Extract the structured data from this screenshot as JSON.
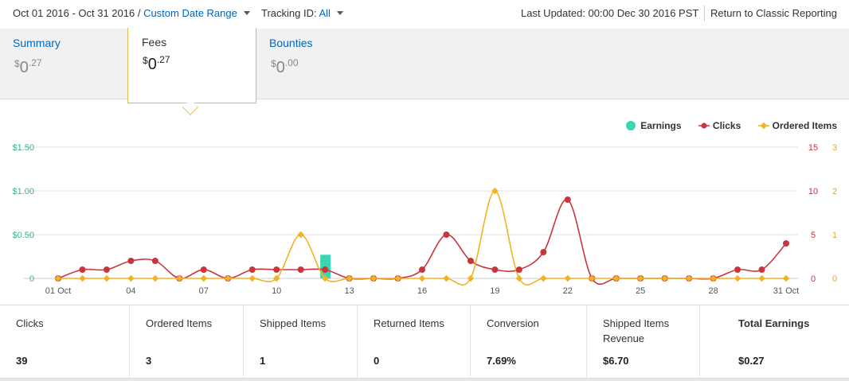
{
  "header": {
    "date_range": "Oct 01 2016 - Oct 31 2016 /",
    "custom_range_label": "Custom Date Range",
    "tracking_label": "Tracking ID:",
    "tracking_value": "All",
    "last_updated": "Last Updated: 00:00 Dec 30 2016 PST",
    "classic_link": "Return to Classic Reporting"
  },
  "tabs": [
    {
      "title": "Summary",
      "currency": "$",
      "whole": "0",
      "cents": ".27"
    },
    {
      "title": "Fees",
      "currency": "$",
      "whole": "0",
      "cents": ".27"
    },
    {
      "title": "Bounties",
      "currency": "$",
      "whole": "0",
      "cents": ".00"
    }
  ],
  "legend": {
    "earnings": "Earnings",
    "clicks": "Clicks",
    "ordered": "Ordered Items"
  },
  "colors": {
    "earnings": "#3cd5b1",
    "clicks": "#c8363c",
    "ordered": "#f0b323",
    "link": "#0066c0",
    "left_axis": "#3cb08f",
    "right_axis_clicks": "#c8363c",
    "right_axis_ordered": "#e3a33b"
  },
  "chart_data": {
    "type": "line",
    "days": [
      1,
      2,
      3,
      4,
      5,
      6,
      7,
      8,
      9,
      10,
      11,
      12,
      13,
      14,
      15,
      16,
      17,
      18,
      19,
      20,
      21,
      22,
      23,
      24,
      25,
      26,
      27,
      28,
      29,
      30,
      31
    ],
    "x_tick_labels": [
      {
        "day": 1,
        "label": "01 Oct"
      },
      {
        "day": 4,
        "label": "04"
      },
      {
        "day": 7,
        "label": "07"
      },
      {
        "day": 10,
        "label": "10"
      },
      {
        "day": 13,
        "label": "13"
      },
      {
        "day": 16,
        "label": "16"
      },
      {
        "day": 19,
        "label": "19"
      },
      {
        "day": 22,
        "label": "22"
      },
      {
        "day": 25,
        "label": "25"
      },
      {
        "day": 28,
        "label": "28"
      },
      {
        "day": 31,
        "label": "31 Oct"
      }
    ],
    "series": [
      {
        "name": "Earnings",
        "type": "bar",
        "axis": "left",
        "values": [
          0,
          0,
          0,
          0,
          0,
          0,
          0,
          0,
          0,
          0,
          0,
          0.27,
          0,
          0,
          0,
          0,
          0,
          0,
          0,
          0,
          0,
          0,
          0,
          0,
          0,
          0,
          0,
          0,
          0,
          0,
          0
        ]
      },
      {
        "name": "Clicks",
        "type": "line",
        "axis": "right1",
        "values": [
          0,
          1,
          1,
          2,
          2,
          0,
          1,
          0,
          1,
          1,
          1,
          1,
          0,
          0,
          0,
          1,
          5,
          2,
          1,
          1,
          3,
          9,
          0,
          0,
          0,
          0,
          0,
          0,
          1,
          1,
          4
        ]
      },
      {
        "name": "Ordered Items",
        "type": "line",
        "axis": "right2",
        "values": [
          0,
          0,
          0,
          0,
          0,
          0,
          0,
          0,
          0,
          0,
          1,
          0,
          0,
          0,
          0,
          0,
          0,
          0,
          2,
          0,
          0,
          0,
          0,
          0,
          0,
          0,
          0,
          0,
          0,
          0,
          0
        ]
      }
    ],
    "left_axis": {
      "ticks": [
        "0",
        "$0.50",
        "$1.00",
        "$1.50"
      ],
      "range": [
        0,
        1.5
      ]
    },
    "right_axis_clicks": {
      "ticks": [
        "0",
        "5",
        "10",
        "15"
      ],
      "range": [
        0,
        15
      ]
    },
    "right_axis_ordered": {
      "ticks": [
        "0",
        "1",
        "2",
        "3"
      ],
      "range": [
        0,
        3
      ]
    },
    "grid": true,
    "legend_position": "top-right"
  },
  "stats": [
    {
      "label": "Clicks",
      "value": "39"
    },
    {
      "label": "Ordered Items",
      "value": "3"
    },
    {
      "label": "Shipped Items",
      "value": "1"
    },
    {
      "label": "Returned Items",
      "value": "0"
    },
    {
      "label": "Conversion",
      "value": "7.69%"
    },
    {
      "label": "Shipped Items Revenue",
      "value": "$6.70"
    },
    {
      "label": "Total Earnings",
      "value": "$0.27"
    }
  ]
}
